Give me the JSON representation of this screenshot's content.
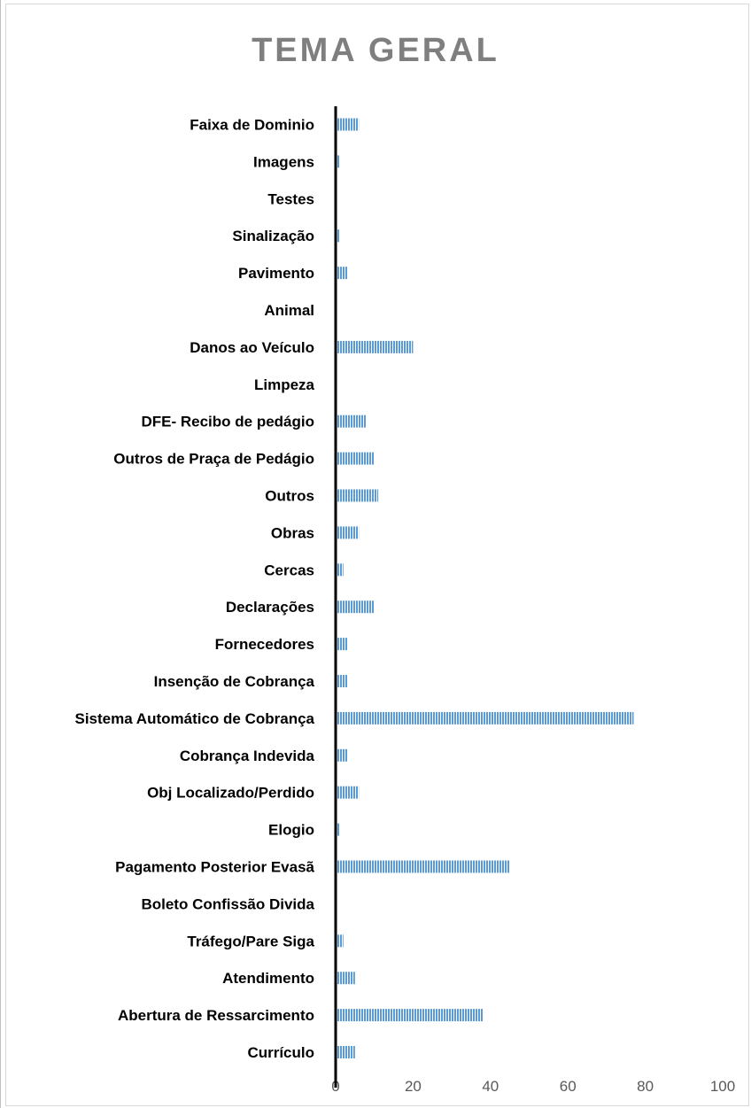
{
  "chart_data": {
    "type": "bar",
    "orientation": "horizontal",
    "title": "TEMA GERAL",
    "categories": [
      "Faixa de Dominio",
      "Imagens",
      "Testes",
      "Sinalização",
      "Pavimento",
      "Animal",
      "Danos ao Veículo",
      "Limpeza",
      "DFE- Recibo de pedágio",
      "Outros de Praça de Pedágio",
      "Outros",
      "Obras",
      "Cercas",
      "Declarações ",
      "Fornecedores",
      "Insenção de Cobrança",
      "Sistema Automático de Cobrança",
      "Cobrança Indevida",
      "Obj Localizado/Perdido",
      "Elogio",
      "Pagamento Posterior Evasã",
      "Boleto Confissão Divida",
      "Tráfego/Pare Siga",
      "Atendimento",
      "Abertura de Ressarcimento",
      "Currículo"
    ],
    "values": [
      6,
      1,
      0,
      1,
      3,
      0,
      20,
      0,
      8,
      10,
      11,
      6,
      2,
      10,
      3,
      3,
      77,
      3,
      6,
      1,
      45,
      0,
      2,
      5,
      38,
      5
    ],
    "xlim": [
      0,
      100
    ],
    "xticks": [
      "0",
      "20",
      "40",
      "60",
      "80",
      "100"
    ],
    "bar_color": "#5b9bd5",
    "bar_pattern": "vertical-stripes",
    "grid": false,
    "legend": "none"
  }
}
